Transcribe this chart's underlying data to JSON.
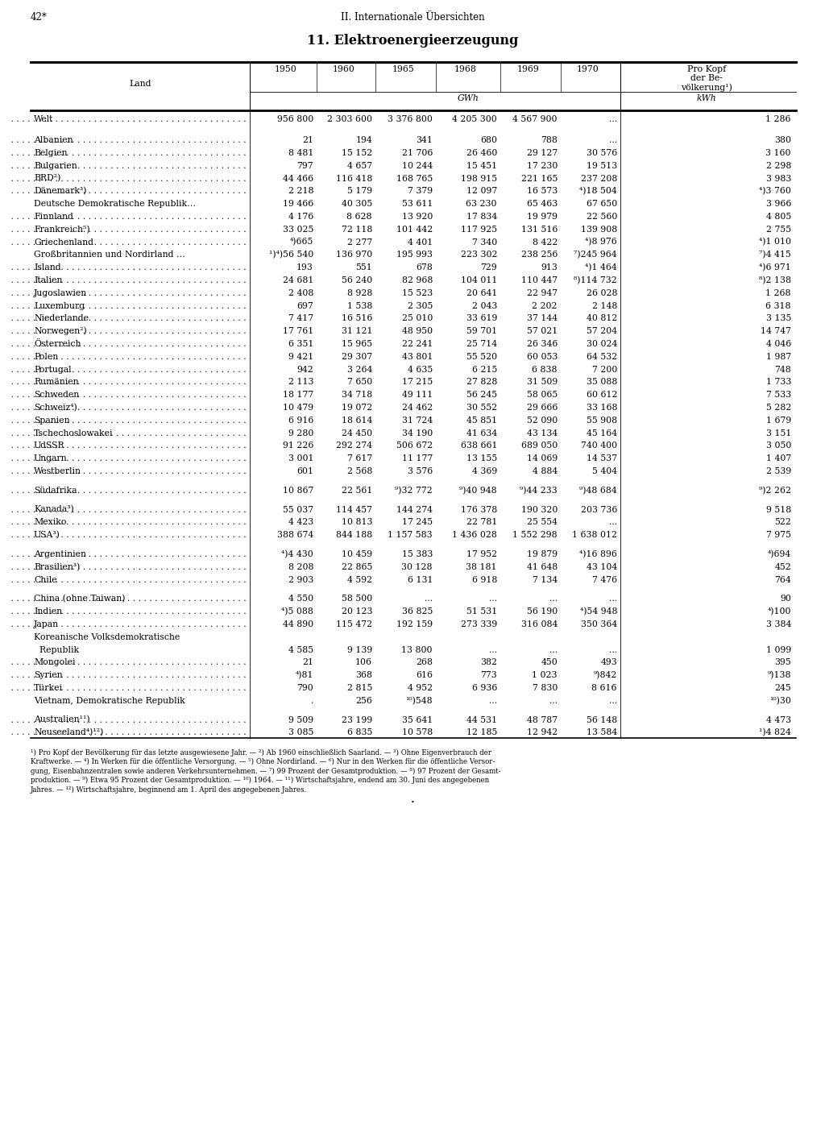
{
  "page_num": "42*",
  "chapter": "II. Internationale Übersichten",
  "title": "11. Elektroenergieerzeugung",
  "rows": [
    {
      "land": "Welt",
      "dots": true,
      "v1950": "956 800",
      "v1960": "2 303 600",
      "v1965": "3 376 800",
      "v1968": "4 205 300",
      "v1969": "4 567 900",
      "v1970": "...",
      "vkopf": "1 286",
      "spacer_before": false,
      "spacer_after": true
    },
    {
      "land": "Albanien",
      "dots": true,
      "v1950": "21",
      "v1960": "194",
      "v1965": "341",
      "v1968": "680",
      "v1969": "788",
      "v1970": "...",
      "vkopf": "380",
      "spacer_before": true,
      "spacer_after": false
    },
    {
      "land": "Belgien",
      "dots": true,
      "v1950": "8 481",
      "v1960": "15 152",
      "v1965": "21 706",
      "v1968": "26 460",
      "v1969": "29 127",
      "v1970": "30 576",
      "vkopf": "3 160",
      "spacer_before": false,
      "spacer_after": false
    },
    {
      "land": "Bulgarien",
      "dots": true,
      "v1950": "797",
      "v1960": "4 657",
      "v1965": "10 244",
      "v1968": "15 451",
      "v1969": "17 230",
      "v1970": "19 513",
      "vkopf": "2 298",
      "spacer_before": false,
      "spacer_after": false
    },
    {
      "land": "BRD²)",
      "dots": true,
      "v1950": "44 466",
      "v1960": "116 418",
      "v1965": "168 765",
      "v1968": "198 915",
      "v1969": "221 165",
      "v1970": "237 208",
      "vkopf": "3 983",
      "spacer_before": false,
      "spacer_after": false
    },
    {
      "land": "Dänemark³)",
      "dots": true,
      "v1950": "2 218",
      "v1960": "5 179",
      "v1965": "7 379",
      "v1968": "12 097",
      "v1969": "16 573",
      "v1970": "⁴)18 504",
      "vkopf": "⁴)3 760",
      "spacer_before": false,
      "spacer_after": false
    },
    {
      "land": "Deutsche Demokratische Republik…",
      "dots": false,
      "v1950": "19 466",
      "v1960": "40 305",
      "v1965": "53 611",
      "v1968": "63 230",
      "v1969": "65 463",
      "v1970": "67 650",
      "vkopf": "3 966",
      "spacer_before": false,
      "spacer_after": false
    },
    {
      "land": "Finnland",
      "dots": true,
      "v1950": "4 176",
      "v1960": "8 628",
      "v1965": "13 920",
      "v1968": "17 834",
      "v1969": "19 979",
      "v1970": "22 560",
      "vkopf": "4 805",
      "spacer_before": false,
      "spacer_after": false
    },
    {
      "land": "Frankreich⁵)",
      "dots": true,
      "v1950": "33 025",
      "v1960": "72 118",
      "v1965": "101 442",
      "v1968": "117 925",
      "v1969": "131 516",
      "v1970": "139 908",
      "vkopf": "2 755",
      "spacer_before": false,
      "spacer_after": false
    },
    {
      "land": "Griechenland",
      "dots": true,
      "v1950": "⁴)665",
      "v1960": "2 277",
      "v1965": "4 401",
      "v1968": "7 340",
      "v1969": "8 422",
      "v1970": "⁴)8 976",
      "vkopf": "⁴)1 010",
      "spacer_before": false,
      "spacer_after": false
    },
    {
      "land": "Großbritannien und Nordirland …",
      "dots": true,
      "v1950": "¹)⁴)56 540",
      "v1960": "136 970",
      "v1965": "195 993",
      "v1968": "223 302",
      "v1969": "238 256",
      "v1970": "⁷)245 964",
      "vkopf": "⁷)4 415",
      "spacer_before": false,
      "spacer_after": false
    },
    {
      "land": "Island",
      "dots": true,
      "v1950": "193",
      "v1960": "551",
      "v1965": "678",
      "v1968": "729",
      "v1969": "913",
      "v1970": "⁴)1 464",
      "vkopf": "⁴)6 971",
      "spacer_before": false,
      "spacer_after": false
    },
    {
      "land": "Italien",
      "dots": true,
      "v1950": "24 681",
      "v1960": "56 240",
      "v1965": "82 968",
      "v1968": "104 011",
      "v1969": "110 447",
      "v1970": "⁸)114 732",
      "vkopf": "⁸)2 138",
      "spacer_before": false,
      "spacer_after": false
    },
    {
      "land": "Jugoslawien",
      "dots": true,
      "v1950": "2 408",
      "v1960": "8 928",
      "v1965": "15 523",
      "v1968": "20 641",
      "v1969": "22 947",
      "v1970": "26 028",
      "vkopf": "1 268",
      "spacer_before": false,
      "spacer_after": false
    },
    {
      "land": "Luxemburg",
      "dots": true,
      "v1950": "697",
      "v1960": "1 538",
      "v1965": "2 305",
      "v1968": "2 043",
      "v1969": "2 202",
      "v1970": "2 148",
      "vkopf": "6 318",
      "spacer_before": false,
      "spacer_after": false
    },
    {
      "land": "Niederlande",
      "dots": true,
      "v1950": "7 417",
      "v1960": "16 516",
      "v1965": "25 010",
      "v1968": "33 619",
      "v1969": "37 144",
      "v1970": "40 812",
      "vkopf": "3 135",
      "spacer_before": false,
      "spacer_after": false
    },
    {
      "land": "Norwegen²)",
      "dots": true,
      "v1950": "17 761",
      "v1960": "31 121",
      "v1965": "48 950",
      "v1968": "59 701",
      "v1969": "57 021",
      "v1970": "57 204",
      "vkopf": "14 747",
      "spacer_before": false,
      "spacer_after": false
    },
    {
      "land": "Österreich",
      "dots": true,
      "v1950": "6 351",
      "v1960": "15 965",
      "v1965": "22 241",
      "v1968": "25 714",
      "v1969": "26 346",
      "v1970": "30 024",
      "vkopf": "4 046",
      "spacer_before": false,
      "spacer_after": false
    },
    {
      "land": "Polen",
      "dots": true,
      "v1950": "9 421",
      "v1960": "29 307",
      "v1965": "43 801",
      "v1968": "55 520",
      "v1969": "60 053",
      "v1970": "64 532",
      "vkopf": "1 987",
      "spacer_before": false,
      "spacer_after": false
    },
    {
      "land": "Portugal",
      "dots": true,
      "v1950": "942",
      "v1960": "3 264",
      "v1965": "4 635",
      "v1968": "6 215",
      "v1969": "6 838",
      "v1970": "7 200",
      "vkopf": "748",
      "spacer_before": false,
      "spacer_after": false
    },
    {
      "land": "Rumänien",
      "dots": true,
      "v1950": "2 113",
      "v1960": "7 650",
      "v1965": "17 215",
      "v1968": "27 828",
      "v1969": "31 509",
      "v1970": "35 088",
      "vkopf": "1 733",
      "spacer_before": false,
      "spacer_after": false
    },
    {
      "land": "Schweden",
      "dots": true,
      "v1950": "18 177",
      "v1960": "34 718",
      "v1965": "49 111",
      "v1968": "56 245",
      "v1969": "58 065",
      "v1970": "60 612",
      "vkopf": "7 533",
      "spacer_before": false,
      "spacer_after": false
    },
    {
      "land": "Schweiz⁴)",
      "dots": true,
      "v1950": "10 479",
      "v1960": "19 072",
      "v1965": "24 462",
      "v1968": "30 552",
      "v1969": "29 666",
      "v1970": "33 168",
      "vkopf": "5 282",
      "spacer_before": false,
      "spacer_after": false
    },
    {
      "land": "Spanien",
      "dots": true,
      "v1950": "6 916",
      "v1960": "18 614",
      "v1965": "31 724",
      "v1968": "45 851",
      "v1969": "52 090",
      "v1970": "55 908",
      "vkopf": "1 679",
      "spacer_before": false,
      "spacer_after": false
    },
    {
      "land": "Tschechoslowakei",
      "dots": true,
      "v1950": "9 280",
      "v1960": "24 450",
      "v1965": "34 190",
      "v1968": "41 634",
      "v1969": "43 134",
      "v1970": "45 164",
      "vkopf": "3 151",
      "spacer_before": false,
      "spacer_after": false
    },
    {
      "land": "UdSSR",
      "dots": true,
      "v1950": "91 226",
      "v1960": "292 274",
      "v1965": "506 672",
      "v1968": "638 661",
      "v1969": "689 050",
      "v1970": "740 400",
      "vkopf": "3 050",
      "spacer_before": false,
      "spacer_after": false
    },
    {
      "land": "Ungarn",
      "dots": true,
      "v1950": "3 001",
      "v1960": "7 617",
      "v1965": "11 177",
      "v1968": "13 155",
      "v1969": "14 069",
      "v1970": "14 537",
      "vkopf": "1 407",
      "spacer_before": false,
      "spacer_after": false
    },
    {
      "land": "Westberlin",
      "dots": true,
      "v1950": "601",
      "v1960": "2 568",
      "v1965": "3 576",
      "v1968": "4 369",
      "v1969": "4 884",
      "v1970": "5 404",
      "vkopf": "2 539",
      "spacer_before": false,
      "spacer_after": true
    },
    {
      "land": "Südafrika",
      "dots": true,
      "v1950": "10 867",
      "v1960": "22 561",
      "v1965": "⁹)32 772",
      "v1968": "⁹)40 948",
      "v1969": "⁹)44 233",
      "v1970": "⁹)48 684",
      "vkopf": "⁹)2 262",
      "spacer_before": false,
      "spacer_after": true
    },
    {
      "land": "Kanada³)",
      "dots": true,
      "v1950": "55 037",
      "v1960": "114 457",
      "v1965": "144 274",
      "v1968": "176 378",
      "v1969": "190 320",
      "v1970": "203 736",
      "vkopf": "9 518",
      "spacer_before": false,
      "spacer_after": false
    },
    {
      "land": "Mexiko",
      "dots": true,
      "v1950": "4 423",
      "v1960": "10 813",
      "v1965": "17 245",
      "v1968": "22 781",
      "v1969": "25 554",
      "v1970": "...",
      "vkopf": "522",
      "spacer_before": false,
      "spacer_after": false
    },
    {
      "land": "USA³)",
      "dots": true,
      "v1950": "388 674",
      "v1960": "844 188",
      "v1965": "1 157 583",
      "v1968": "1 436 028",
      "v1969": "1 552 298",
      "v1970": "1 638 012",
      "vkopf": "7 975",
      "spacer_before": false,
      "spacer_after": true
    },
    {
      "land": "Argentinien",
      "dots": true,
      "v1950": "⁴)4 430",
      "v1960": "10 459",
      "v1965": "15 383",
      "v1968": "17 952",
      "v1969": "19 879",
      "v1970": "⁴)16 896",
      "vkopf": "⁴)694",
      "spacer_before": false,
      "spacer_after": false
    },
    {
      "land": "Brasilien³)",
      "dots": true,
      "v1950": "8 208",
      "v1960": "22 865",
      "v1965": "30 128",
      "v1968": "38 181",
      "v1969": "41 648",
      "v1970": "43 104",
      "vkopf": "452",
      "spacer_before": false,
      "spacer_after": false
    },
    {
      "land": "Chile",
      "dots": true,
      "v1950": "2 903",
      "v1960": "4 592",
      "v1965": "6 131",
      "v1968": "6 918",
      "v1969": "7 134",
      "v1970": "7 476",
      "vkopf": "764",
      "spacer_before": false,
      "spacer_after": true
    },
    {
      "land": "China (ohne Taiwan)",
      "dots": true,
      "v1950": "4 550",
      "v1960": "58 500",
      "v1965": "...",
      "v1968": "...",
      "v1969": "...",
      "v1970": "...",
      "vkopf": "90",
      "spacer_before": false,
      "spacer_after": false
    },
    {
      "land": "Indien",
      "dots": true,
      "v1950": "⁴)5 088",
      "v1960": "20 123",
      "v1965": "36 825",
      "v1968": "51 531",
      "v1969": "56 190",
      "v1970": "⁴)54 948",
      "vkopf": "⁴)100",
      "spacer_before": false,
      "spacer_after": false
    },
    {
      "land": "Japan",
      "dots": true,
      "v1950": "44 890",
      "v1960": "115 472",
      "v1965": "192 159",
      "v1968": "273 339",
      "v1969": "316 084",
      "v1970": "350 364",
      "vkopf": "3 384",
      "spacer_before": false,
      "spacer_after": false
    },
    {
      "land": "Koreanische Volksdemokratische",
      "dots": false,
      "v1950": "",
      "v1960": "",
      "v1965": "",
      "v1968": "",
      "v1969": "",
      "v1970": "",
      "vkopf": "",
      "spacer_before": false,
      "spacer_after": false
    },
    {
      "land": "  Republik",
      "dots": true,
      "v1950": "4 585",
      "v1960": "9 139",
      "v1965": "13 800",
      "v1968": "...",
      "v1969": "...",
      "v1970": "...",
      "vkopf": "1 099",
      "spacer_before": false,
      "spacer_after": false
    },
    {
      "land": "Mongolei",
      "dots": true,
      "v1950": "21",
      "v1960": "106",
      "v1965": "268",
      "v1968": "382",
      "v1969": "450",
      "v1970": "493",
      "vkopf": "395",
      "spacer_before": false,
      "spacer_after": false
    },
    {
      "land": "Syrien",
      "dots": true,
      "v1950": "⁴)81",
      "v1960": "368",
      "v1965": "616",
      "v1968": "773",
      "v1969": "1 023",
      "v1970": "⁹)842",
      "vkopf": "⁹)138",
      "spacer_before": false,
      "spacer_after": false
    },
    {
      "land": "Türkei",
      "dots": true,
      "v1950": "790",
      "v1960": "2 815",
      "v1965": "4 952",
      "v1968": "6 936",
      "v1969": "7 830",
      "v1970": "8 616",
      "vkopf": "245",
      "spacer_before": false,
      "spacer_after": false
    },
    {
      "land": "Vietnam, Demokratische Republik",
      "dots": true,
      "v1950": ".",
      "v1960": "256",
      "v1965": "¹⁰)548",
      "v1968": "...",
      "v1969": "...",
      "v1970": "...",
      "vkopf": "¹⁰)30",
      "spacer_before": false,
      "spacer_after": true
    },
    {
      "land": "Australien¹¹)",
      "dots": true,
      "v1950": "9 509",
      "v1960": "23 199",
      "v1965": "35 641",
      "v1968": "44 531",
      "v1969": "48 787",
      "v1970": "56 148",
      "vkopf": "4 473",
      "spacer_before": false,
      "spacer_after": false
    },
    {
      "land": "Neuseeland⁴)¹²)",
      "dots": true,
      "v1950": "3 085",
      "v1960": "6 835",
      "v1965": "10 578",
      "v1968": "12 185",
      "v1969": "12 942",
      "v1970": "13 584",
      "vkopf": "¹)4 824",
      "spacer_before": false,
      "spacer_after": false
    }
  ],
  "footnotes": [
    "¹) Pro Kopf der Bevölkerung für das letzte ausgewiesene Jahr. — ²) Ab 1960 einschließlich Saarland. — ³) Ohne Eigenverbrauch der",
    "Kraftwerke. — ⁴) In Werken für die öffentliche Versorgung. — ⁵) Ohne Nordirland. — ⁶) Nur in den Werken für die öffentliche Versor-",
    "gung, Eisenbahnzentralen sowie anderen Verkehrsunternehmen. — ⁷) 99 Prozent der Gesamtproduktion. — ⁸) 97 Prozent der Gesamt-",
    "produktion. — ⁹) Etwa 95 Prozent der Gesamtproduktion. — ¹⁰) 1964. — ¹¹) Wirtschaftsjahre, endend am 30. Juni des angegebenen",
    "Jahres. — ¹²) Wirtschaftsjahre, beginnend am 1. April des angegebenen Jahres."
  ]
}
